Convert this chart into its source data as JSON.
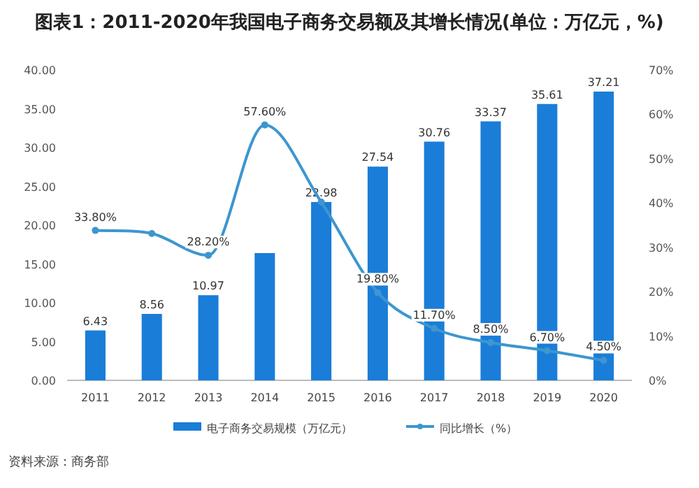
{
  "chart_data": {
    "type": "bar",
    "title": "图表1：2011-2020年我国电子商务交易额及其增长情况(单位：万亿元，%)",
    "categories": [
      "2011",
      "2012",
      "2013",
      "2014",
      "2015",
      "2016",
      "2017",
      "2018",
      "2019",
      "2020"
    ],
    "series": [
      {
        "name": "电子商务交易规模（万亿元）",
        "color": "#1a7dd8",
        "values": [
          6.43,
          8.56,
          10.97,
          16.4,
          22.98,
          27.54,
          30.76,
          33.37,
          35.61,
          37.21
        ],
        "value_labels": [
          "6.43",
          "8.56",
          "10.97",
          null,
          "22.98",
          "27.54",
          "30.76",
          "33.37",
          "35.61",
          "37.21"
        ]
      },
      {
        "name": "同比增长（%）",
        "type": "line",
        "axis": "y2",
        "color": "#3d96cf",
        "marker": "circle",
        "values": [
          33.8,
          33.1,
          28.2,
          57.6,
          40.2,
          19.8,
          11.7,
          8.5,
          6.7,
          4.5
        ],
        "value_labels": [
          "33.80%",
          null,
          "28.20%",
          "57.60%",
          null,
          "19.80%",
          "11.70%",
          "8.50%",
          "6.70%",
          "4.50%"
        ]
      }
    ],
    "ylim": [
      0,
      40
    ],
    "yticks": [
      {
        "value": 0,
        "label": "0.00"
      },
      {
        "value": 5,
        "label": "5.00"
      },
      {
        "value": 10,
        "label": "10.00"
      },
      {
        "value": 15,
        "label": "15.00"
      },
      {
        "value": 20,
        "label": "20.00"
      },
      {
        "value": 25,
        "label": "25.00"
      },
      {
        "value": 30,
        "label": "30.00"
      },
      {
        "value": 35,
        "label": "35.00"
      },
      {
        "value": 40,
        "label": "40.00"
      }
    ],
    "y2lim": [
      0,
      70
    ],
    "y2ticks": [
      {
        "value": 0,
        "label": "0%"
      },
      {
        "value": 10,
        "label": "10%"
      },
      {
        "value": 20,
        "label": "20%"
      },
      {
        "value": 30,
        "label": "30%"
      },
      {
        "value": 40,
        "label": "40%"
      },
      {
        "value": 50,
        "label": "50%"
      },
      {
        "value": 60,
        "label": "60%"
      },
      {
        "value": 70,
        "label": "70%"
      }
    ],
    "grid": false,
    "legend": "bottom",
    "annotations": [
      "资料来源：商务部"
    ]
  }
}
